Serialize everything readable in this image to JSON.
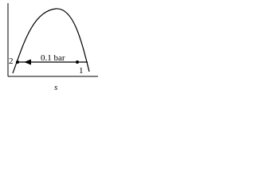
{
  "diagram": {
    "pressure_label": "0.1 bar",
    "state_2": "2",
    "state_1": "1",
    "x_axis_label": "s"
  }
}
